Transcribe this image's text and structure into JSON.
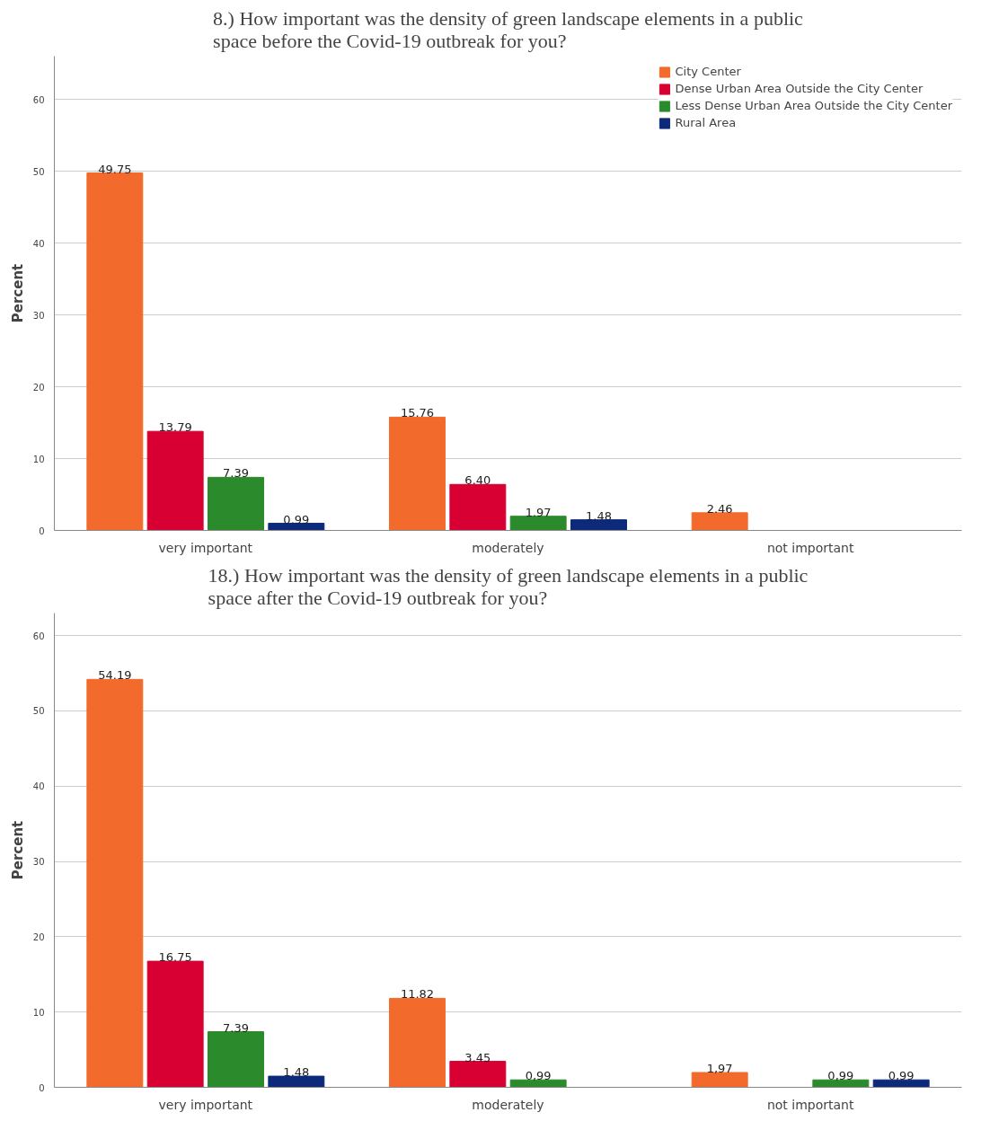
{
  "chart_data": [
    {
      "type": "bar",
      "title": "8.) How important was the density of green landscape elements in a public space before the Covid-19 outbreak for you?",
      "ylabel": "Percent",
      "categories": [
        "very important",
        "moderately",
        "not important"
      ],
      "series": [
        {
          "name": "City Center",
          "color": "#f26b2c",
          "values": [
            49.75,
            15.76,
            2.46
          ],
          "value_labels": [
            "49.75",
            "15.76",
            "2.46"
          ]
        },
        {
          "name": "Dense Urban Area Outside the City Center",
          "color": "#d80032",
          "values": [
            13.79,
            6.4,
            null
          ],
          "value_labels": [
            "13.79",
            "6.40",
            null
          ]
        },
        {
          "name": "Less Dense Urban Area Outside the City Center",
          "color": "#2b8a2b",
          "values": [
            7.39,
            1.97,
            null
          ],
          "value_labels": [
            "7.39",
            "1.97",
            null
          ]
        },
        {
          "name": "Rural Area",
          "color": "#0d2a7a",
          "values": [
            0.99,
            1.48,
            null
          ],
          "value_labels": [
            "0.99",
            "1.48",
            null
          ]
        }
      ],
      "ylim": [
        0,
        66
      ],
      "yticks": [
        0,
        10,
        20,
        30,
        40,
        50,
        60
      ],
      "grid": "y",
      "legend": "top right"
    },
    {
      "type": "bar",
      "title": "18.) How important was the density of green landscape elements in a public space after the Covid-19 outbreak for you?",
      "ylabel": "Percent",
      "categories": [
        "very important",
        "moderately",
        "not important"
      ],
      "series": [
        {
          "color": "#f26b2c",
          "values": [
            54.19,
            11.82,
            1.97
          ],
          "value_labels": [
            "54.19",
            "11.82",
            "1,97"
          ]
        },
        {
          "color": "#d80032",
          "values": [
            16.75,
            3.45,
            null
          ],
          "value_labels": [
            "16.75",
            "3.45",
            null
          ]
        },
        {
          "color": "#2b8a2b",
          "values": [
            7.39,
            0.99,
            0.99
          ],
          "value_labels": [
            "7.39",
            "0,99",
            "0,99"
          ]
        },
        {
          "color": "#0d2a7a",
          "values": [
            1.48,
            null,
            0.99
          ],
          "value_labels": [
            "1.48",
            null,
            "0,99"
          ]
        }
      ],
      "ylim": [
        0,
        63
      ],
      "yticks": [
        0,
        10,
        20,
        30,
        40,
        50,
        60
      ],
      "grid": "y"
    }
  ]
}
